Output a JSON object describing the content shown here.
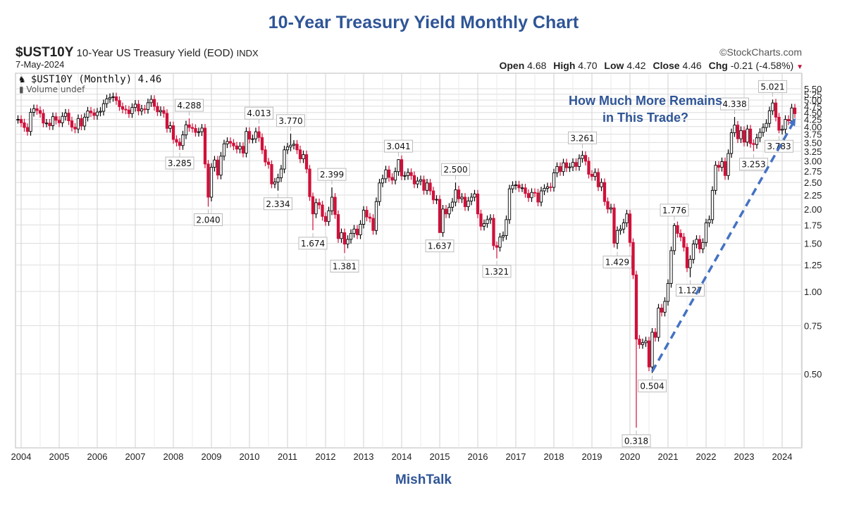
{
  "header": {
    "title": "10-Year Treasury Yield Monthly Chart",
    "symbol": "$UST10Y",
    "description": "10-Year US Treasury Yield (EOD)",
    "exchange": "INDX",
    "date": "7-May-2024",
    "brand": "©StockCharts.com",
    "open_label": "Open",
    "open": "4.68",
    "high_label": "High",
    "high": "4.70",
    "low_label": "Low",
    "low": "4.42",
    "close_label": "Close",
    "close": "4.46",
    "chg_label": "Chg",
    "chg": "-0.21 (-4.58%)"
  },
  "legend": {
    "series": "$UST10Y (Monthly) 4.46",
    "volume": "Volume undef"
  },
  "annotation": "How Much More Remains in This Trade?",
  "footer": "MishTalk",
  "colors": {
    "title": "#2f5597",
    "up": "#000000",
    "down": "#d0103a",
    "trendline": "#4472c4"
  },
  "chart_data": {
    "type": "candlestick",
    "scale": "log",
    "ylim": [
      0.27,
      5.6
    ],
    "yticks": [
      "0.50",
      "0.75",
      "1.00",
      "1.25",
      "1.50",
      "1.75",
      "2.00",
      "2.25",
      "2.50",
      "2.75",
      "3.00",
      "3.25",
      "3.50",
      "3.75",
      "4.00",
      "4.25",
      "4.50",
      "4.75",
      "5.00",
      "5.25",
      "5.50"
    ],
    "xticks": [
      "2004",
      "2005",
      "2006",
      "2007",
      "2008",
      "2009",
      "2010",
      "2011",
      "2012",
      "2013",
      "2014",
      "2015",
      "2016",
      "2017",
      "2018",
      "2019",
      "2020",
      "2021",
      "2022",
      "2023",
      "2024"
    ],
    "start_month": "2003-12",
    "monthly_close": [
      4.25,
      4.13,
      3.97,
      3.84,
      4.51,
      4.65,
      4.58,
      4.47,
      4.12,
      4.12,
      4.03,
      4.35,
      4.22,
      4.13,
      4.36,
      4.48,
      4.2,
      3.98,
      3.92,
      4.28,
      4.02,
      4.33,
      4.56,
      4.49,
      4.39,
      4.52,
      4.55,
      4.85,
      5.05,
      5.11,
      5.14,
      4.98,
      4.73,
      4.63,
      4.6,
      4.46,
      4.7,
      4.83,
      4.56,
      4.64,
      4.62,
      4.89,
      5.03,
      4.74,
      4.53,
      4.58,
      4.47,
      3.94,
      4.03,
      3.59,
      3.51,
      3.41,
      3.73,
      4.06,
      3.97,
      3.94,
      3.81,
      3.83,
      3.95,
      2.92,
      2.21,
      2.84,
      3.02,
      2.66,
      3.12,
      3.46,
      3.53,
      3.48,
      3.4,
      3.31,
      3.39,
      3.2,
      3.84,
      3.6,
      3.61,
      3.83,
      3.65,
      3.29,
      2.97,
      2.91,
      2.47,
      2.51,
      2.6,
      2.8,
      3.29,
      3.37,
      3.42,
      3.45,
      3.29,
      3.05,
      3.16,
      2.8,
      2.22,
      1.92,
      2.11,
      2.07,
      1.88,
      1.8,
      1.97,
      2.21,
      1.91,
      1.56,
      1.64,
      1.49,
      1.55,
      1.63,
      1.69,
      1.61,
      1.76,
      1.98,
      1.87,
      1.85,
      1.67,
      2.13,
      2.49,
      2.58,
      2.78,
      2.61,
      2.55,
      2.74,
      3.03,
      2.64,
      2.65,
      2.72,
      2.65,
      2.47,
      2.53,
      2.56,
      2.34,
      2.49,
      2.33,
      2.16,
      2.17,
      1.64,
      2.0,
      1.92,
      2.03,
      2.12,
      2.35,
      2.18,
      2.21,
      2.04,
      2.14,
      2.21,
      2.27,
      1.92,
      1.73,
      1.77,
      1.83,
      1.85,
      1.47,
      1.45,
      1.58,
      1.6,
      1.83,
      2.37,
      2.44,
      2.45,
      2.39,
      2.39,
      2.28,
      2.2,
      2.3,
      2.29,
      2.12,
      2.33,
      2.38,
      2.41,
      2.4,
      2.71,
      2.86,
      2.74,
      2.95,
      2.83,
      2.85,
      2.96,
      2.86,
      3.06,
      3.14,
      2.99,
      2.68,
      2.63,
      2.72,
      2.41,
      2.5,
      2.13,
      2.0,
      2.02,
      1.5,
      1.67,
      1.69,
      1.78,
      1.92,
      1.51,
      1.15,
      0.67,
      0.64,
      0.65,
      0.66,
      0.53,
      0.71,
      0.68,
      0.87,
      0.84,
      0.92,
      1.07,
      1.41,
      1.74,
      1.63,
      1.58,
      1.45,
      1.22,
      1.31,
      1.49,
      1.55,
      1.43,
      1.51,
      1.78,
      1.83,
      2.34,
      2.89,
      2.84,
      2.98,
      2.65,
      3.19,
      3.8,
      4.05,
      3.61,
      3.87,
      3.51,
      3.92,
      3.47,
      3.44,
      3.64,
      3.81,
      3.97,
      4.11,
      4.57,
      4.88,
      4.33,
      3.88,
      3.91,
      4.25,
      4.2,
      4.68,
      4.46
    ],
    "labels": [
      {
        "month": "2008-03",
        "value": "3.285",
        "kind": "low"
      },
      {
        "month": "2008-06",
        "value": "4.288",
        "kind": "high"
      },
      {
        "month": "2008-12",
        "value": "2.040",
        "kind": "low"
      },
      {
        "month": "2010-04",
        "value": "4.013",
        "kind": "high"
      },
      {
        "month": "2010-10",
        "value": "2.334",
        "kind": "low"
      },
      {
        "month": "2011-02",
        "value": "3.770",
        "kind": "high"
      },
      {
        "month": "2011-09",
        "value": "1.674",
        "kind": "low"
      },
      {
        "month": "2012-03",
        "value": "2.399",
        "kind": "high"
      },
      {
        "month": "2012-07",
        "value": "1.381",
        "kind": "low"
      },
      {
        "month": "2013-12",
        "value": "3.041",
        "kind": "high"
      },
      {
        "month": "2015-01",
        "value": "1.637",
        "kind": "low"
      },
      {
        "month": "2015-06",
        "value": "2.500",
        "kind": "high"
      },
      {
        "month": "2016-07",
        "value": "1.321",
        "kind": "low"
      },
      {
        "month": "2018-10",
        "value": "3.261",
        "kind": "high"
      },
      {
        "month": "2019-09",
        "value": "1.429",
        "kind": "low"
      },
      {
        "month": "2020-03",
        "value": "0.318",
        "kind": "low"
      },
      {
        "month": "2020-08",
        "value": "0.504",
        "kind": "low"
      },
      {
        "month": "2021-03",
        "value": "1.776",
        "kind": "high"
      },
      {
        "month": "2021-08",
        "value": "1.127",
        "kind": "low"
      },
      {
        "month": "2022-10",
        "value": "4.338",
        "kind": "high"
      },
      {
        "month": "2023-04",
        "value": "3.253",
        "kind": "low"
      },
      {
        "month": "2023-10",
        "value": "5.021",
        "kind": "high"
      },
      {
        "month": "2023-12",
        "value": "3.783",
        "kind": "low"
      }
    ],
    "trendline": {
      "from": {
        "month": "2020-08",
        "value": 0.51
      },
      "to": {
        "month": "2024-05",
        "value": 4.3
      },
      "style": "dashed-arrow"
    }
  }
}
